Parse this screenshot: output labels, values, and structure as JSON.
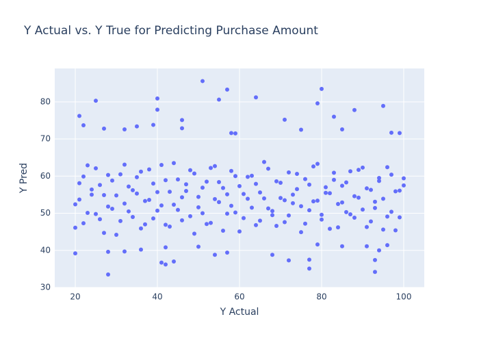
{
  "chart_data": {
    "type": "scatter",
    "title": "Y Actual vs. Y True for Predicting Purchase Amount",
    "x_label": "Y Actual",
    "y_label": "Y Pred",
    "color": "#636efa",
    "grid": true,
    "xlim": [
      15,
      105
    ],
    "ylim": [
      30,
      89
    ],
    "xticks": [
      20,
      40,
      60,
      80,
      100
    ],
    "yticks": [
      30,
      40,
      50,
      60,
      70,
      80
    ],
    "x": [
      51,
      57,
      80,
      64,
      40,
      25,
      55,
      79,
      95,
      40,
      88,
      21,
      46,
      71,
      83,
      22,
      35,
      39,
      27,
      32,
      46,
      75,
      85,
      97,
      99,
      58,
      59,
      28,
      93,
      77,
      42,
      44,
      41,
      72,
      77,
      93,
      20,
      28,
      32,
      54,
      57,
      68,
      94,
      79,
      85,
      91,
      50,
      36,
      42,
      96,
      20,
      21,
      22,
      23,
      24,
      25,
      26,
      27,
      28,
      29,
      30,
      31,
      32,
      33,
      34,
      35,
      36,
      37,
      38,
      39,
      40,
      41,
      42,
      43,
      44,
      45,
      46,
      47,
      48,
      49,
      50,
      51,
      52,
      53,
      54,
      55,
      56,
      57,
      58,
      59,
      60,
      61,
      62,
      63,
      64,
      65,
      66,
      67,
      68,
      69,
      70,
      71,
      72,
      73,
      74,
      75,
      76,
      77,
      78,
      79,
      80,
      81,
      82,
      83,
      84,
      85,
      86,
      87,
      88,
      89,
      90,
      91,
      92,
      93,
      94,
      95,
      96,
      97,
      98,
      99,
      100,
      20,
      21,
      22,
      23,
      24,
      25,
      26,
      27,
      28,
      29,
      30,
      31,
      32,
      33,
      34,
      35,
      36,
      37,
      38,
      39,
      40,
      41,
      42,
      43,
      44,
      45,
      46,
      47,
      48,
      49,
      50,
      51,
      52,
      53,
      54,
      55,
      56,
      57,
      58,
      59,
      60,
      61,
      62,
      63,
      64,
      65,
      66,
      67,
      68,
      69,
      70,
      71,
      72,
      73,
      74,
      75,
      76,
      77,
      78,
      79,
      80,
      81,
      82,
      83,
      84,
      85,
      86,
      87,
      88,
      89,
      90,
      91,
      92,
      93,
      94,
      95,
      96,
      97,
      98,
      99,
      100
    ],
    "y": [
      85.6,
      83.3,
      83.5,
      81.2,
      80.9,
      80.3,
      80.6,
      79.6,
      78.9,
      77.9,
      77.8,
      76.2,
      75.1,
      75.2,
      76.0,
      73.7,
      73.4,
      73.8,
      72.8,
      72.6,
      72.9,
      72.5,
      72.6,
      71.7,
      71.6,
      71.6,
      71.5,
      33.5,
      34.2,
      35.1,
      36.2,
      37.0,
      36.7,
      37.3,
      37.5,
      37.4,
      39.2,
      39.6,
      39.7,
      38.8,
      39.4,
      38.8,
      40.0,
      41.6,
      41.1,
      41.1,
      41.0,
      40.2,
      40.8,
      41.4,
      52.4,
      58.1,
      47.3,
      62.9,
      55.0,
      49.8,
      57.6,
      44.7,
      60.3,
      51.2,
      54.8,
      47.9,
      63.1,
      50.5,
      56.2,
      59.7,
      45.9,
      53.3,
      61.8,
      48.6,
      55.7,
      52.1,
      58.9,
      46.4,
      63.5,
      50.9,
      54.3,
      57.8,
      49.2,
      60.7,
      51.6,
      56.9,
      47.1,
      62.2,
      53.8,
      58.4,
      45.3,
      55.1,
      61.4,
      50.2,
      57.3,
      48.7,
      53.9,
      60.1,
      46.8,
      55.6,
      63.8,
      51.3,
      49.5,
      58.6,
      54.1,
      47.6,
      61.0,
      52.7,
      56.5,
      44.9,
      59.2,
      50.8,
      62.6,
      53.4,
      48.3,
      57.0,
      55.4,
      60.9,
      46.2,
      52.9,
      58.3,
      49.7,
      54.6,
      61.7,
      51.0,
      56.7,
      47.8,
      53.1,
      59.5,
      45.6,
      62.4,
      50.4,
      55.9,
      48.9,
      57.5,
      46.1,
      53.7,
      59.9,
      50.1,
      56.4,
      62.1,
      48.4,
      54.9,
      51.8,
      58.8,
      44.2,
      60.5,
      52.6,
      57.2,
      49.0,
      55.3,
      61.2,
      47.0,
      53.6,
      58.0,
      50.7,
      63.0,
      46.9,
      55.8,
      52.3,
      59.1,
      48.1,
      56.0,
      61.6,
      44.5,
      54.4,
      50.0,
      58.5,
      47.4,
      62.7,
      53.0,
      56.8,
      49.9,
      52.0,
      60.0,
      45.1,
      55.2,
      59.8,
      51.5,
      57.9,
      48.0,
      54.0,
      62.0,
      50.6,
      46.6,
      58.2,
      53.5,
      49.4,
      55.0,
      60.6,
      51.9,
      47.2,
      57.7,
      53.2,
      63.3,
      49.6,
      55.5,
      45.8,
      59.0,
      52.5,
      57.4,
      50.3,
      61.3,
      48.8,
      54.2,
      62.3,
      46.3,
      56.3,
      51.4,
      58.7,
      53.9,
      49.1,
      60.4,
      45.4,
      56.1,
      59.4
    ]
  }
}
